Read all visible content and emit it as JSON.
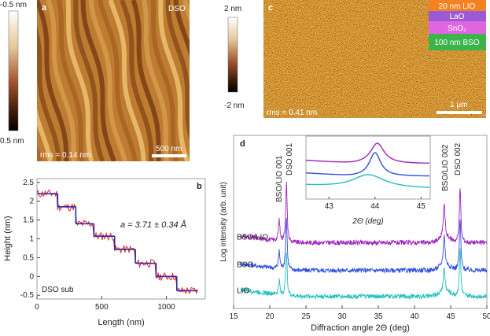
{
  "panel_a": {
    "letter": "a",
    "sample": "DSO",
    "rms": "rms = 0.14 nm",
    "scalebar": "500 nm",
    "colorbar_top": "-0.5 nm",
    "colorbar_bottom": "0.5 nm"
  },
  "panel_c": {
    "letter": "c",
    "rms": "rms = 0.41 nm",
    "scalebar": "1 μm",
    "colorbar_top": "2 nm",
    "colorbar_bottom": "-2 nm",
    "stack": [
      {
        "label": "20 nm LIO",
        "color": "#f58220"
      },
      {
        "label": "LaO",
        "color": "#9b59d6"
      },
      {
        "label": "SnO₂",
        "color": "#e066e0"
      },
      {
        "label": "100 nm BSO",
        "color": "#3cb44b"
      }
    ]
  },
  "chart_data": [
    {
      "type": "line",
      "panel": "b",
      "xlabel": "Length (nm)",
      "ylabel": "Height (nm)",
      "xlim": [
        0,
        1300
      ],
      "ylim": [
        -0.6,
        2.6
      ],
      "xticks": [
        "0",
        "500",
        "1000"
      ],
      "yticks": [
        "-0.5",
        "0",
        "0.5",
        "1",
        "1.5",
        "2",
        "2.5"
      ],
      "annotation": "a = 3.71 ± 0.34 Å",
      "sample_label": "DSO sub",
      "steps": [
        {
          "x0": 0,
          "x1": 160,
          "y": 2.2
        },
        {
          "x0": 160,
          "x1": 300,
          "y": 1.85
        },
        {
          "x0": 300,
          "x1": 440,
          "y": 1.4
        },
        {
          "x0": 440,
          "x1": 600,
          "y": 1.07
        },
        {
          "x0": 600,
          "x1": 760,
          "y": 0.72
        },
        {
          "x0": 760,
          "x1": 920,
          "y": 0.35
        },
        {
          "x0": 920,
          "x1": 1080,
          "y": 0.0
        },
        {
          "x0": 1080,
          "x1": 1240,
          "y": -0.38
        }
      ],
      "colors": {
        "profile": "#e8262a",
        "steps": "#2a2aa8"
      }
    },
    {
      "type": "line",
      "panel": "d",
      "xlabel": "Diffraction angle 2Θ (deg)",
      "ylabel": "Log intensity (arb. unit)",
      "xlim": [
        15,
        50
      ],
      "xticks": [
        "15",
        "20",
        "25",
        "30",
        "35",
        "40",
        "45",
        "50"
      ],
      "series": [
        {
          "name": "BSO/LIO",
          "color": "#a020c0",
          "baseline": 0.62
        },
        {
          "name": "BSO",
          "color": "#3050e0",
          "baseline": 0.78
        },
        {
          "name": "LIO",
          "color": "#20c0c0",
          "baseline": 0.93
        }
      ],
      "peak_labels": [
        "BSO/LIO 001",
        "DSO 001",
        "BSO/LIO 002",
        "DSO 002"
      ],
      "peaks": [
        21.3,
        22.3,
        44.1,
        46.3
      ],
      "inset": {
        "xlim": [
          42.5,
          45.2
        ],
        "xticks": [
          "43",
          "44",
          "45"
        ],
        "xlabel": "2Θ (deg)"
      }
    }
  ]
}
